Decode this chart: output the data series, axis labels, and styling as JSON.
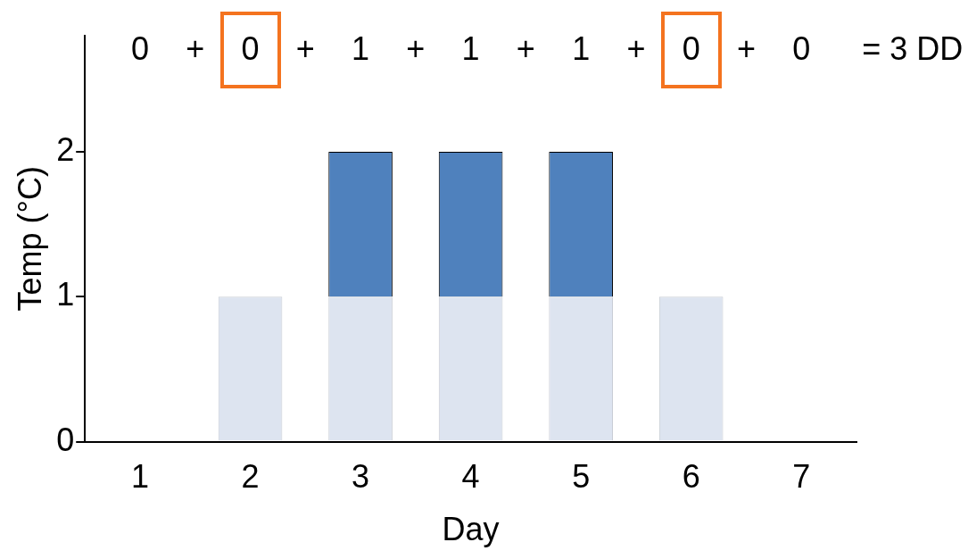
{
  "chart_data": {
    "type": "bar",
    "stacked": true,
    "categories": [
      "1",
      "2",
      "3",
      "4",
      "5",
      "6",
      "7"
    ],
    "series": [
      {
        "color": "#dde4f0",
        "values": [
          0,
          1,
          1,
          1,
          1,
          1,
          0
        ]
      },
      {
        "color": "#4f81bd",
        "values": [
          0,
          0,
          1,
          1,
          1,
          0,
          0
        ]
      }
    ],
    "ylim": [
      0,
      2.8
    ],
    "yticks": [
      0,
      1,
      2
    ],
    "xlabel": "Day",
    "ylabel": "Temp (°C)",
    "annotations": [
      "0 + 0 + 1 + 1 + 1 + 0 + 0 = 3 DD"
    ],
    "legend": false,
    "grid": false
  }
}
